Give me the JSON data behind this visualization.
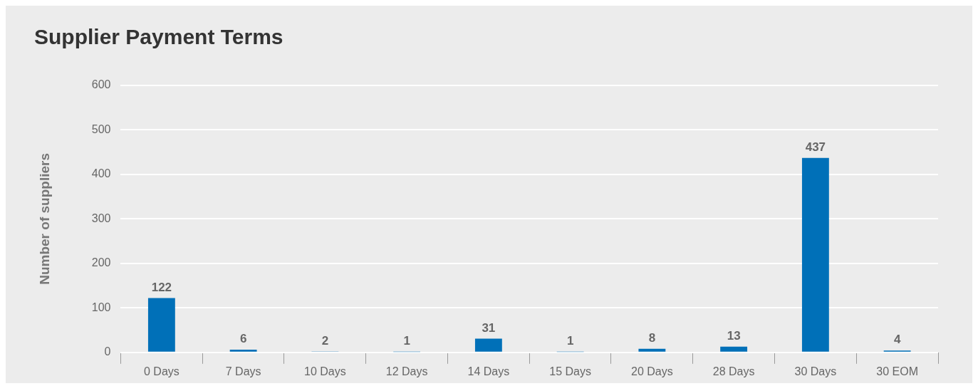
{
  "chart_data": {
    "type": "bar",
    "title": "Supplier Payment Terms",
    "ylabel": "Number of suppliers",
    "categories": [
      "0 Days",
      "7 Days",
      "10 Days",
      "12 Days",
      "14 Days",
      "15 Days",
      "20 Days",
      "28 Days",
      "30 Days",
      "30 EOM"
    ],
    "values": [
      122,
      6,
      2,
      1,
      31,
      1,
      8,
      13,
      437,
      4
    ],
    "color": "#0070b8",
    "ylim": [
      0,
      600
    ],
    "yticks": [
      0,
      100,
      200,
      300,
      400,
      500,
      600
    ],
    "grid": "y",
    "data_labels": true,
    "legend": false
  }
}
